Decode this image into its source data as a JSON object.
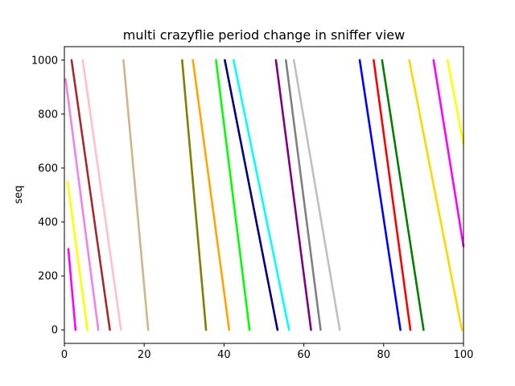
{
  "chart_data": {
    "type": "scatter",
    "title": "multi crazyflie period change in sniffer view",
    "xlabel": "",
    "ylabel": "seq",
    "xlim": [
      0,
      100
    ],
    "ylim": [
      -50,
      1050
    ],
    "xticks": [
      "0",
      "20",
      "40",
      "60",
      "80",
      "100"
    ],
    "yticks": [
      "0",
      "200",
      "400",
      "600",
      "800",
      "1000"
    ],
    "grid": false,
    "legend": "none",
    "series": [
      {
        "color": "#ffc0cb",
        "segments": [
          [
            [
              4.6,
              1000
            ],
            [
              14.2,
              0
            ]
          ]
        ]
      },
      {
        "color": "#a52a2a",
        "segments": [
          [
            [
              1.8,
              1000
            ],
            [
              11.4,
              0
            ]
          ]
        ]
      },
      {
        "color": "#ee82ee",
        "segments": [
          [
            [
              0.3,
              930
            ],
            [
              8.5,
              0
            ]
          ]
        ]
      },
      {
        "color": "#ffff00",
        "segments": [
          [
            [
              0.8,
              550
            ],
            [
              5.8,
              0
            ]
          ]
        ]
      },
      {
        "color": "#ff00ff",
        "segments": [
          [
            [
              1.0,
              300
            ],
            [
              2.8,
              0
            ]
          ]
        ]
      },
      {
        "color": "#d2b48c",
        "segments": [
          [
            [
              14.8,
              1000
            ],
            [
              21.0,
              0
            ]
          ]
        ]
      },
      {
        "color": "#808000",
        "segments": [
          [
            [
              29.5,
              1000
            ],
            [
              35.5,
              0
            ]
          ]
        ]
      },
      {
        "color": "#ffa500",
        "segments": [
          [
            [
              32.2,
              1000
            ],
            [
              41.3,
              0
            ]
          ]
        ]
      },
      {
        "color": "#00ff00",
        "segments": [
          [
            [
              38.0,
              1000
            ],
            [
              46.4,
              0
            ]
          ]
        ]
      },
      {
        "color": "#000080",
        "segments": [
          [
            [
              40.2,
              1000
            ],
            [
              53.4,
              0
            ]
          ]
        ]
      },
      {
        "color": "#00ffff",
        "segments": [
          [
            [
              42.4,
              1000
            ],
            [
              56.3,
              0
            ]
          ]
        ]
      },
      {
        "color": "#800080",
        "segments": [
          [
            [
              53.0,
              1000
            ],
            [
              61.8,
              0
            ]
          ]
        ]
      },
      {
        "color": "#808080",
        "segments": [
          [
            [
              55.5,
              1000
            ],
            [
              64.2,
              0
            ]
          ]
        ]
      },
      {
        "color": "#c0c0c0",
        "segments": [
          [
            [
              57.5,
              1000
            ],
            [
              69.0,
              0
            ]
          ]
        ]
      },
      {
        "color": "#0000ff",
        "segments": [
          [
            [
              74.0,
              1000
            ],
            [
              84.2,
              0
            ]
          ]
        ]
      },
      {
        "color": "#ff0000",
        "segments": [
          [
            [
              77.5,
              1000
            ],
            [
              86.7,
              0
            ]
          ]
        ]
      },
      {
        "color": "#008000",
        "segments": [
          [
            [
              79.6,
              1000
            ],
            [
              90.0,
              0
            ]
          ]
        ]
      },
      {
        "color": "#ffd700",
        "segments": [
          [
            [
              86.4,
              1000
            ],
            [
              99.6,
              0
            ]
          ]
        ]
      },
      {
        "color": "#ff00ff",
        "segments": [
          [
            [
              92.5,
              1000
            ],
            [
              100.0,
              310
            ]
          ]
        ]
      },
      {
        "color": "#ffff00",
        "segments": [
          [
            [
              96.0,
              1000
            ],
            [
              100.0,
              690
            ]
          ]
        ]
      }
    ]
  }
}
